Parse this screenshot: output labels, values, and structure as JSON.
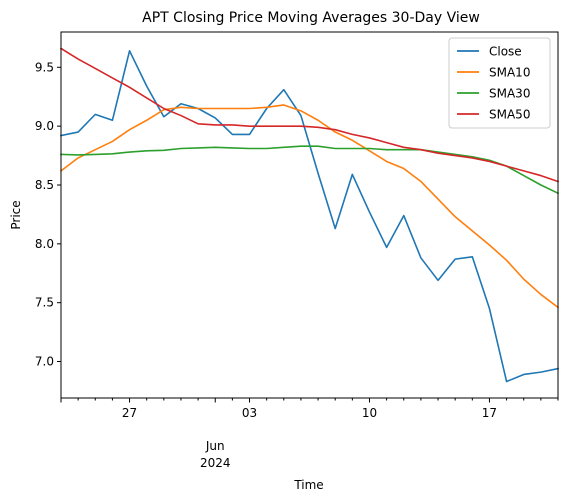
{
  "chart_data": {
    "type": "line",
    "title": "APT Closing Price Moving Averages 30-Day View",
    "xlabel": "Time",
    "ylabel": "Price",
    "x": [
      "2024-05-23",
      "2024-05-24",
      "2024-05-25",
      "2024-05-26",
      "2024-05-27",
      "2024-05-28",
      "2024-05-29",
      "2024-05-30",
      "2024-05-31",
      "2024-06-01",
      "2024-06-02",
      "2024-06-03",
      "2024-06-04",
      "2024-06-05",
      "2024-06-06",
      "2024-06-07",
      "2024-06-08",
      "2024-06-09",
      "2024-06-10",
      "2024-06-11",
      "2024-06-12",
      "2024-06-13",
      "2024-06-14",
      "2024-06-15",
      "2024-06-16",
      "2024-06-17",
      "2024-06-18",
      "2024-06-19",
      "2024-06-20",
      "2024-06-21"
    ],
    "xlim": [
      "2024-05-23",
      "2024-06-21"
    ],
    "ylim": [
      6.69,
      9.8
    ],
    "x_ticks": [
      {
        "date": "2024-05-27",
        "label": "27"
      },
      {
        "date": "2024-06-03",
        "label": "03"
      },
      {
        "date": "2024-06-10",
        "label": "10"
      },
      {
        "date": "2024-06-17",
        "label": "17"
      }
    ],
    "x_major_ticks": [
      "2024-05-23",
      "2024-05-27",
      "2024-06-01",
      "2024-06-03",
      "2024-06-10",
      "2024-06-17"
    ],
    "x_minor_ticks": [
      "2024-05-24",
      "2024-05-25",
      "2024-05-26",
      "2024-05-28",
      "2024-05-29",
      "2024-05-30",
      "2024-05-31",
      "2024-06-02",
      "2024-06-04",
      "2024-06-05",
      "2024-06-06",
      "2024-06-07",
      "2024-06-08",
      "2024-06-09",
      "2024-06-11",
      "2024-06-12",
      "2024-06-13",
      "2024-06-14",
      "2024-06-15",
      "2024-06-16",
      "2024-06-18",
      "2024-06-19",
      "2024-06-20",
      "2024-06-21"
    ],
    "x_secondary_label": {
      "date": "2024-06-01",
      "line1": "Jun",
      "line2": "2024"
    },
    "y_ticks": [
      7.0,
      7.5,
      8.0,
      8.5,
      9.0,
      9.5
    ],
    "y_tick_labels": [
      "7.0",
      "7.5",
      "8.0",
      "8.5",
      "9.0",
      "9.5"
    ],
    "grid": false,
    "legend_position": "top-right",
    "series": [
      {
        "name": "Close",
        "color": "#1f77b4",
        "values": [
          8.92,
          8.95,
          9.1,
          9.05,
          9.64,
          9.34,
          9.08,
          9.19,
          9.15,
          9.07,
          8.93,
          8.93,
          9.15,
          9.31,
          9.09,
          8.6,
          8.13,
          8.59,
          8.27,
          7.97,
          8.24,
          7.88,
          7.69,
          7.87,
          7.89,
          7.45,
          6.83,
          6.89,
          6.91,
          6.94
        ]
      },
      {
        "name": "SMA10",
        "color": "#ff7f0e",
        "values": [
          8.62,
          8.73,
          8.8,
          8.87,
          8.97,
          9.05,
          9.14,
          9.16,
          9.15,
          9.15,
          9.15,
          9.15,
          9.16,
          9.18,
          9.13,
          9.05,
          8.95,
          8.88,
          8.79,
          8.7,
          8.64,
          8.53,
          8.38,
          8.23,
          8.11,
          7.99,
          7.86,
          7.7,
          7.57,
          7.46
        ]
      },
      {
        "name": "SMA30",
        "color": "#2ca02c",
        "values": [
          8.76,
          8.755,
          8.76,
          8.765,
          8.78,
          8.79,
          8.795,
          8.81,
          8.815,
          8.82,
          8.815,
          8.81,
          8.81,
          8.82,
          8.83,
          8.83,
          8.81,
          8.81,
          8.81,
          8.8,
          8.8,
          8.8,
          8.78,
          8.76,
          8.74,
          8.71,
          8.66,
          8.58,
          8.5,
          8.43
        ]
      },
      {
        "name": "SMA50",
        "color": "#d62728",
        "values": [
          9.66,
          9.57,
          9.49,
          9.41,
          9.33,
          9.24,
          9.15,
          9.09,
          9.02,
          9.01,
          9.01,
          9.0,
          9.0,
          9.0,
          9.0,
          8.99,
          8.97,
          8.93,
          8.9,
          8.86,
          8.82,
          8.8,
          8.77,
          8.75,
          8.73,
          8.7,
          8.66,
          8.62,
          8.58,
          8.53
        ]
      }
    ]
  }
}
